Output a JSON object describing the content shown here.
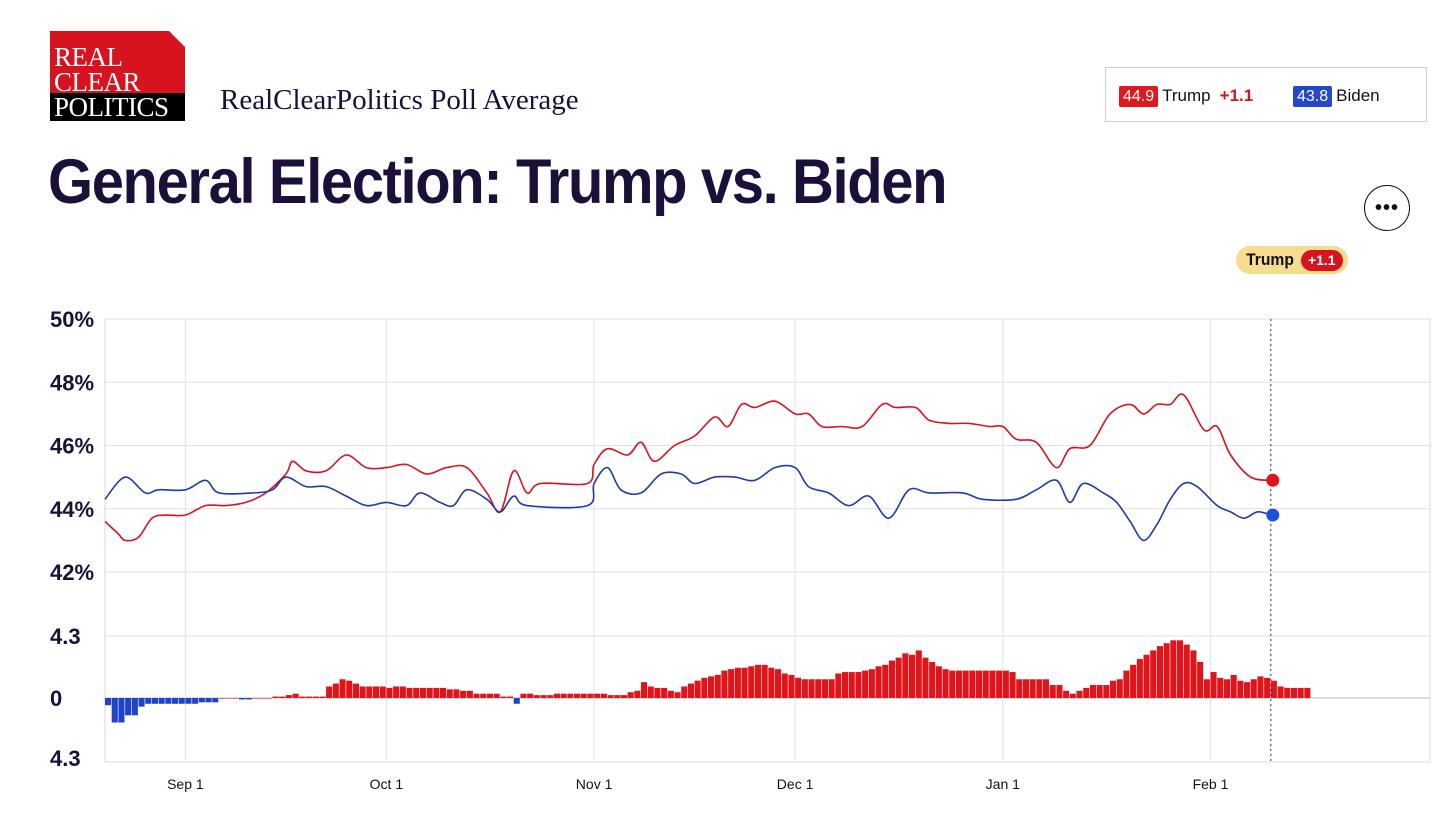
{
  "logo": {
    "line1": "REAL",
    "line2": "CLEAR",
    "line3": "POLITICS"
  },
  "subtitle": "RealClearPolitics Poll Average",
  "legend": {
    "trump": {
      "value": "44.9",
      "name": "Trump",
      "spread": "+1.1"
    },
    "biden": {
      "value": "43.8",
      "name": "Biden"
    }
  },
  "more_button_label": "•••",
  "spread_badge": {
    "name": "Trump",
    "value": "+1.1"
  },
  "colors": {
    "trump": "#d6131e",
    "biden": "#1f3ca8",
    "grid": "#dddddd",
    "text": "#1c0f3a"
  },
  "chart_data": {
    "type": "line",
    "title": "General Election: Trump vs. Biden",
    "xlabel": "",
    "ylabel": "",
    "x_range": [
      "2023-08-20",
      "2024-02-28"
    ],
    "x_ticks": [
      {
        "label": "Sep 1",
        "date": "2023-09-01"
      },
      {
        "label": "Oct 1",
        "date": "2023-10-01"
      },
      {
        "label": "Nov 1",
        "date": "2023-11-01"
      },
      {
        "label": "Dec 1",
        "date": "2023-12-01"
      },
      {
        "label": "Jan 1",
        "date": "2024-01-01"
      },
      {
        "label": "Feb 1",
        "date": "2024-02-01"
      }
    ],
    "y_ticks": [
      "50%",
      "48%",
      "46%",
      "44%",
      "42%"
    ],
    "ylim": [
      42,
      50
    ],
    "last_date": "2024-02-10",
    "grid": true,
    "series": [
      {
        "name": "Trump",
        "color": "#d6131e",
        "end_value": 44.9,
        "points": [
          [
            "2023-08-20",
            43.6
          ],
          [
            "2023-08-22",
            43.2
          ],
          [
            "2023-08-23",
            43.0
          ],
          [
            "2023-08-25",
            43.1
          ],
          [
            "2023-08-27",
            43.7
          ],
          [
            "2023-08-29",
            43.8
          ],
          [
            "2023-09-01",
            43.8
          ],
          [
            "2023-09-04",
            44.1
          ],
          [
            "2023-09-07",
            44.1
          ],
          [
            "2023-09-10",
            44.2
          ],
          [
            "2023-09-13",
            44.5
          ],
          [
            "2023-09-16",
            45.1
          ],
          [
            "2023-09-17",
            45.5
          ],
          [
            "2023-09-19",
            45.2
          ],
          [
            "2023-09-22",
            45.2
          ],
          [
            "2023-09-25",
            45.7
          ],
          [
            "2023-09-28",
            45.3
          ],
          [
            "2023-10-01",
            45.3
          ],
          [
            "2023-10-04",
            45.4
          ],
          [
            "2023-10-07",
            45.1
          ],
          [
            "2023-10-10",
            45.3
          ],
          [
            "2023-10-13",
            45.3
          ],
          [
            "2023-10-16",
            44.5
          ],
          [
            "2023-10-18",
            43.9
          ],
          [
            "2023-10-20",
            45.2
          ],
          [
            "2023-10-22",
            44.5
          ],
          [
            "2023-10-24",
            44.8
          ],
          [
            "2023-10-31",
            44.8
          ],
          [
            "2023-11-01",
            45.4
          ],
          [
            "2023-11-03",
            45.9
          ],
          [
            "2023-11-06",
            45.7
          ],
          [
            "2023-11-08",
            46.1
          ],
          [
            "2023-11-10",
            45.5
          ],
          [
            "2023-11-13",
            46.0
          ],
          [
            "2023-11-16",
            46.3
          ],
          [
            "2023-11-19",
            46.9
          ],
          [
            "2023-11-21",
            46.6
          ],
          [
            "2023-11-23",
            47.3
          ],
          [
            "2023-11-25",
            47.2
          ],
          [
            "2023-11-28",
            47.4
          ],
          [
            "2023-12-01",
            47.0
          ],
          [
            "2023-12-03",
            47.0
          ],
          [
            "2023-12-05",
            46.6
          ],
          [
            "2023-12-08",
            46.6
          ],
          [
            "2023-12-11",
            46.6
          ],
          [
            "2023-12-14",
            47.3
          ],
          [
            "2023-12-16",
            47.2
          ],
          [
            "2023-12-19",
            47.2
          ],
          [
            "2023-12-21",
            46.8
          ],
          [
            "2023-12-24",
            46.7
          ],
          [
            "2023-12-27",
            46.7
          ],
          [
            "2023-12-30",
            46.6
          ],
          [
            "2024-01-01",
            46.6
          ],
          [
            "2024-01-03",
            46.2
          ],
          [
            "2024-01-06",
            46.1
          ],
          [
            "2024-01-09",
            45.3
          ],
          [
            "2024-01-11",
            45.9
          ],
          [
            "2024-01-14",
            46.0
          ],
          [
            "2024-01-17",
            47.0
          ],
          [
            "2024-01-20",
            47.3
          ],
          [
            "2024-01-22",
            47.0
          ],
          [
            "2024-01-24",
            47.3
          ],
          [
            "2024-01-26",
            47.3
          ],
          [
            "2024-01-28",
            47.6
          ],
          [
            "2024-01-31",
            46.5
          ],
          [
            "2024-02-02",
            46.6
          ],
          [
            "2024-02-04",
            45.7
          ],
          [
            "2024-02-07",
            45.0
          ],
          [
            "2024-02-10",
            44.9
          ]
        ]
      },
      {
        "name": "Biden",
        "color": "#1f3ca8",
        "end_value": 43.8,
        "points": [
          [
            "2023-08-20",
            44.3
          ],
          [
            "2023-08-23",
            45.0
          ],
          [
            "2023-08-26",
            44.5
          ],
          [
            "2023-08-28",
            44.6
          ],
          [
            "2023-09-01",
            44.6
          ],
          [
            "2023-09-04",
            44.9
          ],
          [
            "2023-09-06",
            44.5
          ],
          [
            "2023-09-11",
            44.5
          ],
          [
            "2023-09-14",
            44.6
          ],
          [
            "2023-09-16",
            45.0
          ],
          [
            "2023-09-19",
            44.7
          ],
          [
            "2023-09-22",
            44.7
          ],
          [
            "2023-09-25",
            44.4
          ],
          [
            "2023-09-28",
            44.1
          ],
          [
            "2023-10-01",
            44.2
          ],
          [
            "2023-10-04",
            44.1
          ],
          [
            "2023-10-06",
            44.5
          ],
          [
            "2023-10-09",
            44.2
          ],
          [
            "2023-10-11",
            44.1
          ],
          [
            "2023-10-13",
            44.6
          ],
          [
            "2023-10-16",
            44.3
          ],
          [
            "2023-10-18",
            43.9
          ],
          [
            "2023-10-20",
            44.4
          ],
          [
            "2023-10-22",
            44.1
          ],
          [
            "2023-10-31",
            44.1
          ],
          [
            "2023-11-01",
            44.8
          ],
          [
            "2023-11-03",
            45.3
          ],
          [
            "2023-11-05",
            44.6
          ],
          [
            "2023-11-08",
            44.5
          ],
          [
            "2023-11-11",
            45.1
          ],
          [
            "2023-11-14",
            45.1
          ],
          [
            "2023-11-16",
            44.8
          ],
          [
            "2023-11-19",
            45.0
          ],
          [
            "2023-11-22",
            45.0
          ],
          [
            "2023-11-25",
            44.9
          ],
          [
            "2023-11-28",
            45.3
          ],
          [
            "2023-12-01",
            45.3
          ],
          [
            "2023-12-03",
            44.7
          ],
          [
            "2023-12-06",
            44.5
          ],
          [
            "2023-12-09",
            44.1
          ],
          [
            "2023-12-12",
            44.4
          ],
          [
            "2023-12-15",
            43.7
          ],
          [
            "2023-12-18",
            44.6
          ],
          [
            "2023-12-21",
            44.5
          ],
          [
            "2023-12-26",
            44.5
          ],
          [
            "2023-12-29",
            44.3
          ],
          [
            "2024-01-03",
            44.3
          ],
          [
            "2024-01-06",
            44.6
          ],
          [
            "2024-01-09",
            44.9
          ],
          [
            "2024-01-11",
            44.2
          ],
          [
            "2024-01-13",
            44.8
          ],
          [
            "2024-01-16",
            44.5
          ],
          [
            "2024-01-18",
            44.2
          ],
          [
            "2024-01-20",
            43.6
          ],
          [
            "2024-01-22",
            43.0
          ],
          [
            "2024-01-24",
            43.5
          ],
          [
            "2024-01-26",
            44.3
          ],
          [
            "2024-01-28",
            44.8
          ],
          [
            "2024-01-30",
            44.7
          ],
          [
            "2024-02-02",
            44.1
          ],
          [
            "2024-02-04",
            43.9
          ],
          [
            "2024-02-06",
            43.7
          ],
          [
            "2024-02-08",
            43.9
          ],
          [
            "2024-02-10",
            43.8
          ]
        ]
      }
    ],
    "spread": {
      "type": "bar",
      "name": "Trump spread over Biden",
      "y_ticks": [
        "4.3",
        "0",
        "4.3"
      ],
      "ylim": [
        -4.3,
        4.3
      ],
      "values": [
        -0.5,
        -1.7,
        -1.7,
        -1.2,
        -1.2,
        -0.6,
        -0.4,
        -0.4,
        -0.4,
        -0.4,
        -0.4,
        -0.4,
        -0.4,
        -0.4,
        -0.3,
        -0.3,
        -0.3,
        0.0,
        0.0,
        0.0,
        -0.1,
        -0.1,
        0.0,
        0.0,
        0.0,
        0.1,
        0.1,
        0.2,
        0.3,
        0.1,
        0.1,
        0.1,
        0.1,
        0.8,
        1.0,
        1.3,
        1.2,
        1.0,
        0.8,
        0.8,
        0.8,
        0.8,
        0.7,
        0.8,
        0.8,
        0.7,
        0.7,
        0.7,
        0.7,
        0.7,
        0.7,
        0.6,
        0.6,
        0.5,
        0.5,
        0.3,
        0.3,
        0.3,
        0.3,
        0.1,
        0.1,
        -0.4,
        0.3,
        0.3,
        0.2,
        0.2,
        0.2,
        0.3,
        0.3,
        0.3,
        0.3,
        0.3,
        0.3,
        0.3,
        0.3,
        0.2,
        0.2,
        0.2,
        0.4,
        0.5,
        1.1,
        0.8,
        0.7,
        0.7,
        0.5,
        0.4,
        0.8,
        1.0,
        1.2,
        1.4,
        1.5,
        1.6,
        1.9,
        2.0,
        2.1,
        2.1,
        2.2,
        2.3,
        2.3,
        2.1,
        2.0,
        1.7,
        1.6,
        1.4,
        1.3,
        1.3,
        1.3,
        1.3,
        1.3,
        1.7,
        1.8,
        1.8,
        1.8,
        1.9,
        2.0,
        2.2,
        2.3,
        2.6,
        2.8,
        3.1,
        3.0,
        3.3,
        2.8,
        2.5,
        2.2,
        2.0,
        1.9,
        1.9,
        1.9,
        1.9,
        1.9,
        1.9,
        1.9,
        1.9,
        1.9,
        1.8,
        1.3,
        1.3,
        1.3,
        1.3,
        1.3,
        0.9,
        0.9,
        0.5,
        0.3,
        0.5,
        0.7,
        0.9,
        0.9,
        0.9,
        1.2,
        1.3,
        1.9,
        2.3,
        2.7,
        3.0,
        3.3,
        3.6,
        3.8,
        4.0,
        4.0,
        3.7,
        3.3,
        2.5,
        1.3,
        1.8,
        1.4,
        1.3,
        1.6,
        1.2,
        1.1,
        1.3,
        1.5,
        1.4,
        1.2,
        0.8,
        0.7,
        0.7,
        0.7,
        0.7
      ]
    }
  }
}
